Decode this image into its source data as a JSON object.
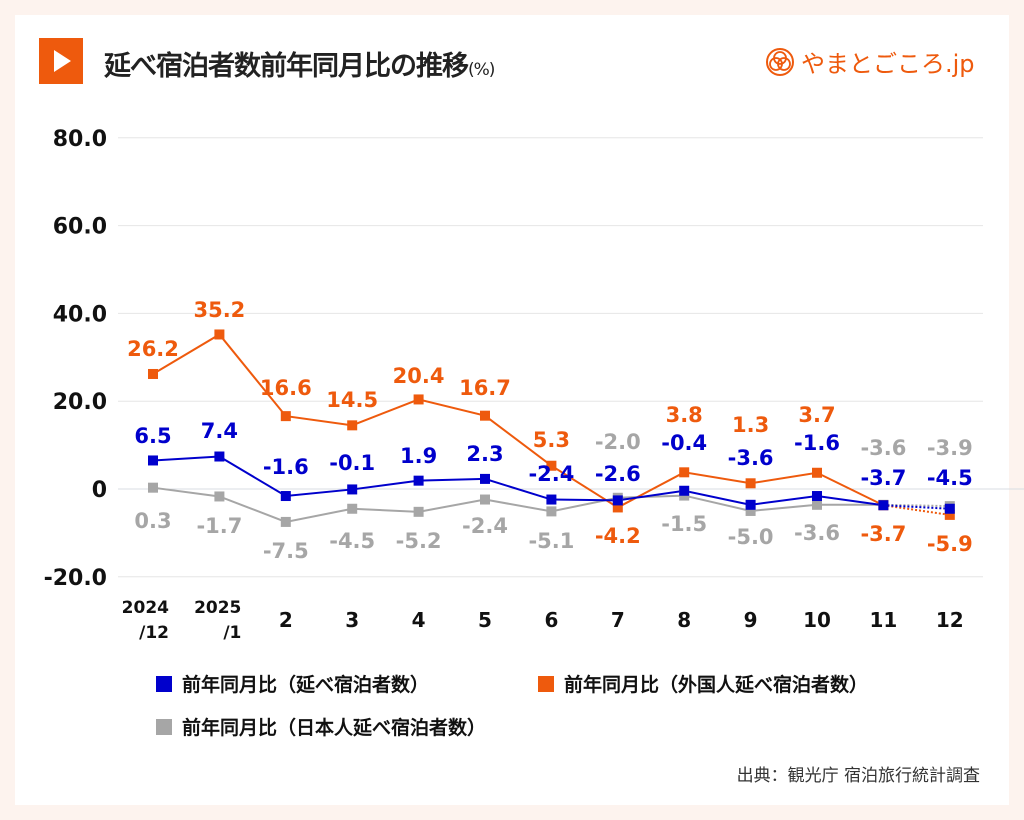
{
  "header": {
    "title": "延べ宿泊者数前年同月比の推移",
    "unit": "(%)",
    "logo_text": "やまとごころ.jp"
  },
  "source": "出典：観光庁 宿泊旅行統計調査",
  "colors": {
    "total": "#0000cc",
    "foreign": "#ee5a0d",
    "japanese": "#a6a6a6",
    "accent": "#ee5a0d"
  },
  "chart_data": {
    "type": "line",
    "title": "延べ宿泊者数前年同月比の推移",
    "ylabel": "(%)",
    "ylim": [
      -20,
      80
    ],
    "yticks": [
      "80.0",
      "60.0",
      "40.0",
      "20.0",
      "0",
      "-20.0"
    ],
    "ytick_values": [
      80,
      60,
      40,
      20,
      0,
      -20
    ],
    "grid": true,
    "legend_placement": "bottom",
    "categories": [
      [
        "2024",
        "/12"
      ],
      [
        "2025",
        "/1"
      ],
      [
        "2"
      ],
      [
        "3"
      ],
      [
        "4"
      ],
      [
        "5"
      ],
      [
        "6"
      ],
      [
        "7"
      ],
      [
        "8"
      ],
      [
        "9"
      ],
      [
        "10"
      ],
      [
        "11"
      ],
      [
        "12"
      ]
    ],
    "last_segment_style": "dotted",
    "series": [
      {
        "name": "前年同月比（延べ宿泊者数）",
        "color": "#0000cc",
        "values": [
          6.5,
          7.4,
          -1.6,
          -0.1,
          1.9,
          2.3,
          -2.4,
          -2.6,
          -0.4,
          -3.6,
          -1.6,
          -3.7,
          -4.5
        ],
        "labels": [
          "6.5",
          "7.4",
          "-1.6",
          "-0.1",
          "1.9",
          "2.3",
          "-2.4",
          "-2.6",
          "-0.4",
          "-3.6",
          "-1.6",
          "-3.7",
          "-4.5"
        ]
      },
      {
        "name": "前年同月比（外国人延べ宿泊者数）",
        "color": "#ee5a0d",
        "values": [
          26.2,
          35.2,
          16.6,
          14.5,
          20.4,
          16.7,
          5.3,
          -4.2,
          3.8,
          1.3,
          3.7,
          -3.7,
          -5.9
        ],
        "labels": [
          "26.2",
          "35.2",
          "16.6",
          "14.5",
          "20.4",
          "16.7",
          "5.3",
          "-4.2",
          "3.8",
          "1.3",
          "3.7",
          "-3.7",
          "-5.9"
        ]
      },
      {
        "name": "前年同月比（日本人延べ宿泊者数）",
        "color": "#a6a6a6",
        "values": [
          0.3,
          -1.7,
          -7.5,
          -4.5,
          -5.2,
          -2.4,
          -5.1,
          -2.0,
          -1.5,
          -5.0,
          -3.6,
          -3.6,
          -3.9
        ],
        "labels": [
          "0.3",
          "-1.7",
          "-7.5",
          "-4.5",
          "-5.2",
          "-2.4",
          "-5.1",
          "-2.0",
          "-1.5",
          "-5.0",
          "-3.6",
          "-3.6",
          "-3.9"
        ]
      }
    ]
  }
}
